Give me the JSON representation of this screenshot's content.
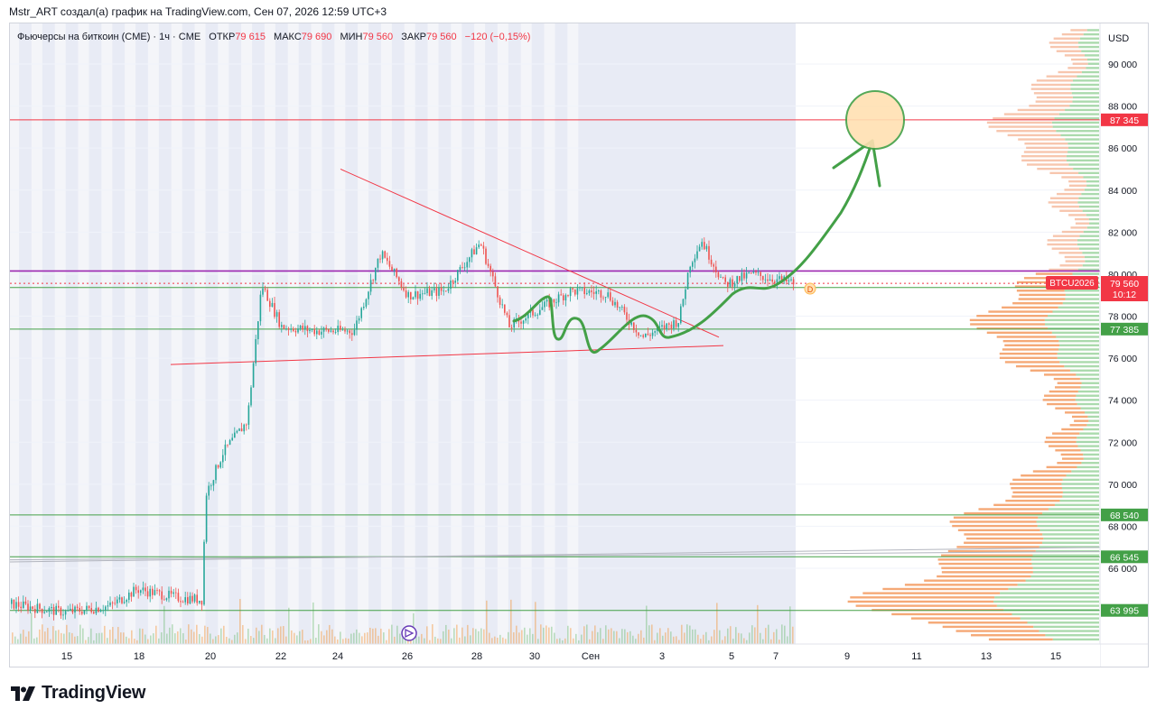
{
  "credit": "Mstr_ART создал(а) график на TradingView.com, Сен 07, 2026 12:59 UTC+3",
  "legend": {
    "symbol": "Фьючерсы на биткоин (CME) · 1ч · CME",
    "open_label": "ОТКР",
    "open": "79 615",
    "high_label": "МАКС",
    "high": "79 690",
    "low_label": "МИН",
    "low": "79 560",
    "close_label": "ЗАКР",
    "close": "79 560",
    "change": "−120 (−0,15%)"
  },
  "currency": "USD",
  "ticker_badge": "BTCU2026",
  "price_badge": {
    "price": "79 560",
    "timer": "10:12"
  },
  "marker": "D",
  "brand": "TradingView",
  "colors": {
    "up": "#26a69a",
    "down": "#ef5350",
    "purple": "#9c27b0",
    "green": "#43a047",
    "red": "#f23645",
    "volume_green": "#4caf50",
    "volume_orange": "#f57c00"
  },
  "chart_data": {
    "type": "line",
    "title": "Фьючерсы на биткоин (CME)",
    "interval": "1ч",
    "xlabel": "",
    "ylabel": "",
    "x_ticks": [
      "15",
      "18",
      "20",
      "22",
      "24",
      "26",
      "28",
      "30",
      "Сен",
      "3",
      "5",
      "7",
      "9",
      "11",
      "13",
      "15"
    ],
    "y_ticks": [
      66000,
      68000,
      70000,
      72000,
      74000,
      76000,
      78000,
      80000,
      82000,
      84000,
      86000,
      88000,
      90000
    ],
    "ylim": [
      62400,
      91800
    ],
    "price_path_approx": [
      {
        "x": "14",
        "y": 64300
      },
      {
        "x": "16",
        "y": 63900
      },
      {
        "x": "17",
        "y": 64200
      },
      {
        "x": "18",
        "y": 65000
      },
      {
        "x": "19",
        "y": 64600
      },
      {
        "x": "19.5",
        "y": 64500
      },
      {
        "x": "20",
        "y": 69500
      },
      {
        "x": "20.5",
        "y": 71500
      },
      {
        "x": "21",
        "y": 73000
      },
      {
        "x": "21.5",
        "y": 79500
      },
      {
        "x": "22",
        "y": 77500
      },
      {
        "x": "23",
        "y": 77300
      },
      {
        "x": "24",
        "y": 77300
      },
      {
        "x": "25",
        "y": 81000
      },
      {
        "x": "26",
        "y": 79000
      },
      {
        "x": "27",
        "y": 79200
      },
      {
        "x": "28",
        "y": 81500
      },
      {
        "x": "29",
        "y": 77500
      },
      {
        "x": "30",
        "y": 78200
      },
      {
        "x": "31",
        "y": 79200
      },
      {
        "x": "Сен 1",
        "y": 79100
      },
      {
        "x": "Сен 2",
        "y": 77000
      },
      {
        "x": "Сен 3",
        "y": 77800
      },
      {
        "x": "Сен 3.5",
        "y": 80500
      },
      {
        "x": "Сен 4",
        "y": 81600
      },
      {
        "x": "Сен 4.5",
        "y": 79500
      },
      {
        "x": "Сен 5",
        "y": 80000
      },
      {
        "x": "Сен 7",
        "y": 79560
      }
    ],
    "horizontal_levels": [
      {
        "value": 87345,
        "label": "87 345",
        "color": "#f23645"
      },
      {
        "value": 80150,
        "label": "",
        "color": "#9c27b0"
      },
      {
        "value": 79365,
        "label": "79 365",
        "color": "#43a047"
      },
      {
        "value": 77385,
        "label": "77 385",
        "color": "#43a047"
      },
      {
        "value": 68540,
        "label": "68 540",
        "color": "#43a047"
      },
      {
        "value": 66545,
        "label": "66 545",
        "color": "#43a047"
      },
      {
        "value": 63995,
        "label": "63 995",
        "color": "#43a047"
      }
    ],
    "trendlines": [
      {
        "from": {
          "x": "24",
          "y": 85000
        },
        "to": {
          "x": "Сен 4",
          "y": 77000
        }
      },
      {
        "from": {
          "x": "19",
          "y": 75700
        },
        "to": {
          "x": "Сен 4",
          "y": 76600
        }
      }
    ],
    "projection": {
      "from": {
        "x": "Сен 7",
        "y": 80000
      },
      "to": {
        "x": "Сен 9",
        "y": 86500
      },
      "target": 87345
    },
    "volume_profile": true,
    "grid": true
  }
}
